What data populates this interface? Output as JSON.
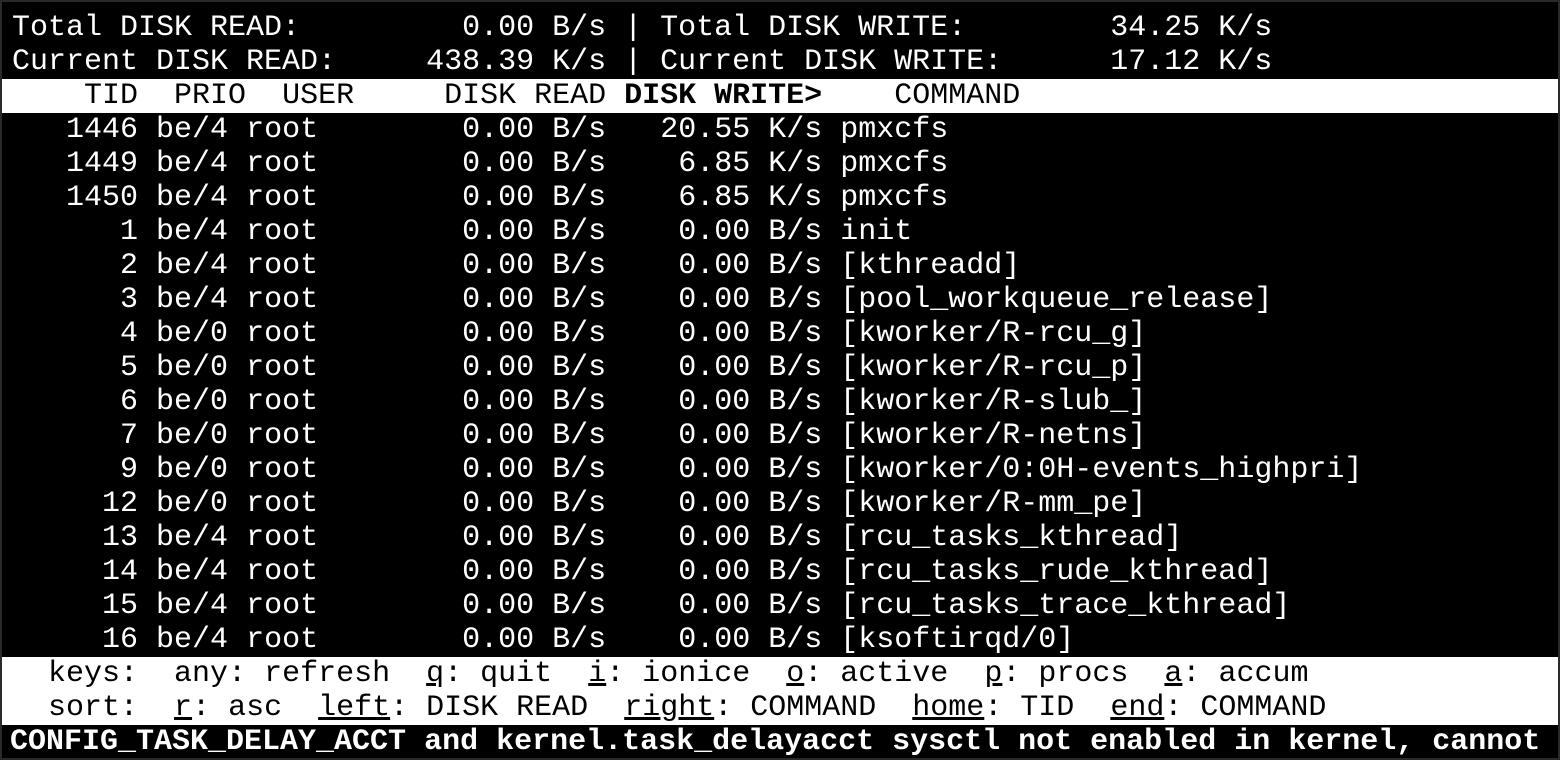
{
  "summary": {
    "total_read_label": "Total DISK READ:",
    "total_read": "0.00 B/s",
    "total_write_label": "Total DISK WRITE:",
    "total_write": "34.25 K/s",
    "current_read_label": "Current DISK READ:",
    "current_read": "438.39 K/s",
    "current_write_label": "Current DISK WRITE:",
    "current_write": "17.12 K/s"
  },
  "columns": {
    "tid": "TID",
    "prio": "PRIO",
    "user": "USER",
    "disk_read": "DISK READ",
    "disk_write": "DISK WRITE>",
    "command": "COMMAND"
  },
  "rows": [
    {
      "tid": "1446",
      "prio": "be/4",
      "user": "root",
      "disk_read": "0.00 B/s",
      "disk_write": "20.55 K/s",
      "command": "pmxcfs"
    },
    {
      "tid": "1449",
      "prio": "be/4",
      "user": "root",
      "disk_read": "0.00 B/s",
      "disk_write": "6.85 K/s",
      "command": "pmxcfs"
    },
    {
      "tid": "1450",
      "prio": "be/4",
      "user": "root",
      "disk_read": "0.00 B/s",
      "disk_write": "6.85 K/s",
      "command": "pmxcfs"
    },
    {
      "tid": "1",
      "prio": "be/4",
      "user": "root",
      "disk_read": "0.00 B/s",
      "disk_write": "0.00 B/s",
      "command": "init"
    },
    {
      "tid": "2",
      "prio": "be/4",
      "user": "root",
      "disk_read": "0.00 B/s",
      "disk_write": "0.00 B/s",
      "command": "[kthreadd]"
    },
    {
      "tid": "3",
      "prio": "be/4",
      "user": "root",
      "disk_read": "0.00 B/s",
      "disk_write": "0.00 B/s",
      "command": "[pool_workqueue_release]"
    },
    {
      "tid": "4",
      "prio": "be/0",
      "user": "root",
      "disk_read": "0.00 B/s",
      "disk_write": "0.00 B/s",
      "command": "[kworker/R-rcu_g]"
    },
    {
      "tid": "5",
      "prio": "be/0",
      "user": "root",
      "disk_read": "0.00 B/s",
      "disk_write": "0.00 B/s",
      "command": "[kworker/R-rcu_p]"
    },
    {
      "tid": "6",
      "prio": "be/0",
      "user": "root",
      "disk_read": "0.00 B/s",
      "disk_write": "0.00 B/s",
      "command": "[kworker/R-slub_]"
    },
    {
      "tid": "7",
      "prio": "be/0",
      "user": "root",
      "disk_read": "0.00 B/s",
      "disk_write": "0.00 B/s",
      "command": "[kworker/R-netns]"
    },
    {
      "tid": "9",
      "prio": "be/0",
      "user": "root",
      "disk_read": "0.00 B/s",
      "disk_write": "0.00 B/s",
      "command": "[kworker/0:0H-events_highpri]"
    },
    {
      "tid": "12",
      "prio": "be/0",
      "user": "root",
      "disk_read": "0.00 B/s",
      "disk_write": "0.00 B/s",
      "command": "[kworker/R-mm_pe]"
    },
    {
      "tid": "13",
      "prio": "be/4",
      "user": "root",
      "disk_read": "0.00 B/s",
      "disk_write": "0.00 B/s",
      "command": "[rcu_tasks_kthread]"
    },
    {
      "tid": "14",
      "prio": "be/4",
      "user": "root",
      "disk_read": "0.00 B/s",
      "disk_write": "0.00 B/s",
      "command": "[rcu_tasks_rude_kthread]"
    },
    {
      "tid": "15",
      "prio": "be/4",
      "user": "root",
      "disk_read": "0.00 B/s",
      "disk_write": "0.00 B/s",
      "command": "[rcu_tasks_trace_kthread]"
    },
    {
      "tid": "16",
      "prio": "be/4",
      "user": "root",
      "disk_read": "0.00 B/s",
      "disk_write": "0.00 B/s",
      "command": "[ksoftirqd/0]"
    }
  ],
  "keys": {
    "label": "keys:",
    "items": [
      {
        "key": "any",
        "label": "refresh",
        "underline": false
      },
      {
        "key": "q",
        "label": "quit",
        "underline": true
      },
      {
        "key": "i",
        "label": "ionice",
        "underline": true
      },
      {
        "key": "o",
        "label": "active",
        "underline": true
      },
      {
        "key": "p",
        "label": "procs",
        "underline": true
      },
      {
        "key": "a",
        "label": "accum",
        "underline": true
      }
    ]
  },
  "sort": {
    "label": "sort:",
    "items": [
      {
        "key": "r",
        "label": "asc",
        "underline": true
      },
      {
        "key": "left",
        "label": "DISK READ",
        "underline": true
      },
      {
        "key": "right",
        "label": "COMMAND",
        "underline": true
      },
      {
        "key": "home",
        "label": "TID",
        "underline": true
      },
      {
        "key": "end",
        "label": "COMMAND",
        "underline": true
      }
    ]
  },
  "warning": "CONFIG_TASK_DELAY_ACCT and kernel.task_delayacct sysctl not enabled in kernel, cannot",
  "colors": {
    "background": "#000000",
    "foreground": "#ffffff",
    "header_bg": "#ffffff"
  }
}
